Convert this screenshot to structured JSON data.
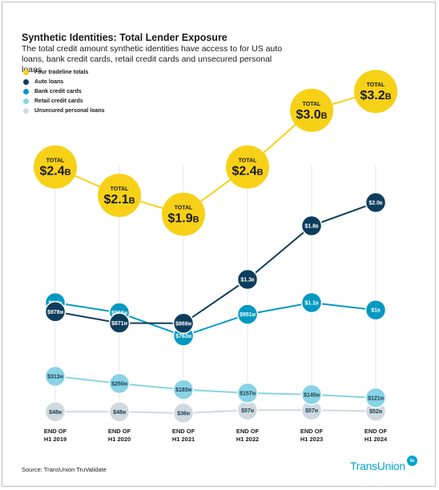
{
  "title": "Synthetic Identities: Total Lender Exposure",
  "subtitle": "The total credit amount synthetic identities have access to for US auto loans, bank credit cards, retail credit cards and unsecured personal loans",
  "source": "Source: TransUnion TruValidate",
  "logo_text": "TransUnion",
  "logo_mark": "tu",
  "total_prefix": "TOTAL",
  "legend": [
    {
      "label": "Four tradeline totals",
      "color": "#f7d117"
    },
    {
      "label": "Auto loans",
      "color": "#0d3d5c"
    },
    {
      "label": "Bank credit cards",
      "color": "#0399c3"
    },
    {
      "label": "Retail credit cards",
      "color": "#88d3e6"
    },
    {
      "label": "Unsecured personal loans",
      "color": "#cfd9e0"
    }
  ],
  "chart_data": {
    "type": "line",
    "categories": [
      [
        "END OF",
        "H1 2019"
      ],
      [
        "END OF",
        "H1 2020"
      ],
      [
        "END OF",
        "H1 2021"
      ],
      [
        "END OF",
        "H1 2022"
      ],
      [
        "END OF",
        "H1 2023"
      ],
      [
        "END OF",
        "H1 2024"
      ]
    ],
    "unit": "USD millions",
    "totals": {
      "name": "Four tradeline totals",
      "values": [
        2400,
        2100,
        1900,
        2400,
        3000,
        3200
      ],
      "labels": [
        [
          "$2.4",
          "B"
        ],
        [
          "$2.1",
          "B"
        ],
        [
          "$1.9",
          "B"
        ],
        [
          "$2.4",
          "B"
        ],
        [
          "$3.0",
          "B"
        ],
        [
          "$3.2",
          "B"
        ]
      ],
      "color": "#f7d117"
    },
    "series": [
      {
        "name": "Auto loans",
        "color": "#0d3d5c",
        "text_color": "#ffffff",
        "values": [
          978,
          871,
          869,
          1300,
          1800,
          2000
        ],
        "labels": [
          [
            "$978",
            "M"
          ],
          [
            "$871",
            "M"
          ],
          [
            "$869",
            "M"
          ],
          [
            "$1.3",
            "B"
          ],
          [
            "$1.8",
            "B"
          ],
          [
            "$2.0",
            "B"
          ]
        ]
      },
      {
        "name": "Bank credit cards",
        "color": "#0399c3",
        "text_color": "#ffffff",
        "values": [
          1100,
          966,
          763,
          951,
          1100,
          1000
        ],
        "labels": [
          [
            "$1.1",
            "B"
          ],
          [
            "$966",
            "M"
          ],
          [
            "$763",
            "M"
          ],
          [
            "$951",
            "M"
          ],
          [
            "$1.1",
            "B"
          ],
          [
            "$1",
            "B"
          ]
        ]
      },
      {
        "name": "Retail credit cards",
        "color": "#88d3e6",
        "text_color": "#1a3a4a",
        "values": [
          313,
          250,
          183,
          157,
          145,
          121
        ],
        "labels": [
          [
            "$313",
            "M"
          ],
          [
            "$250",
            "M"
          ],
          [
            "$183",
            "M"
          ],
          [
            "$157",
            "M"
          ],
          [
            "$145",
            "M"
          ],
          [
            "$121",
            "M"
          ]
        ]
      },
      {
        "name": "Unsecured personal loans",
        "color": "#cfd9e0",
        "text_color": "#1a3a4a",
        "values": [
          48,
          48,
          36,
          57,
          57,
          52
        ],
        "labels": [
          [
            "$48",
            "M"
          ],
          [
            "$48",
            "M"
          ],
          [
            "$36",
            "M"
          ],
          [
            "$57",
            "M"
          ],
          [
            "$57",
            "M"
          ],
          [
            "$52",
            "M"
          ]
        ]
      }
    ]
  }
}
